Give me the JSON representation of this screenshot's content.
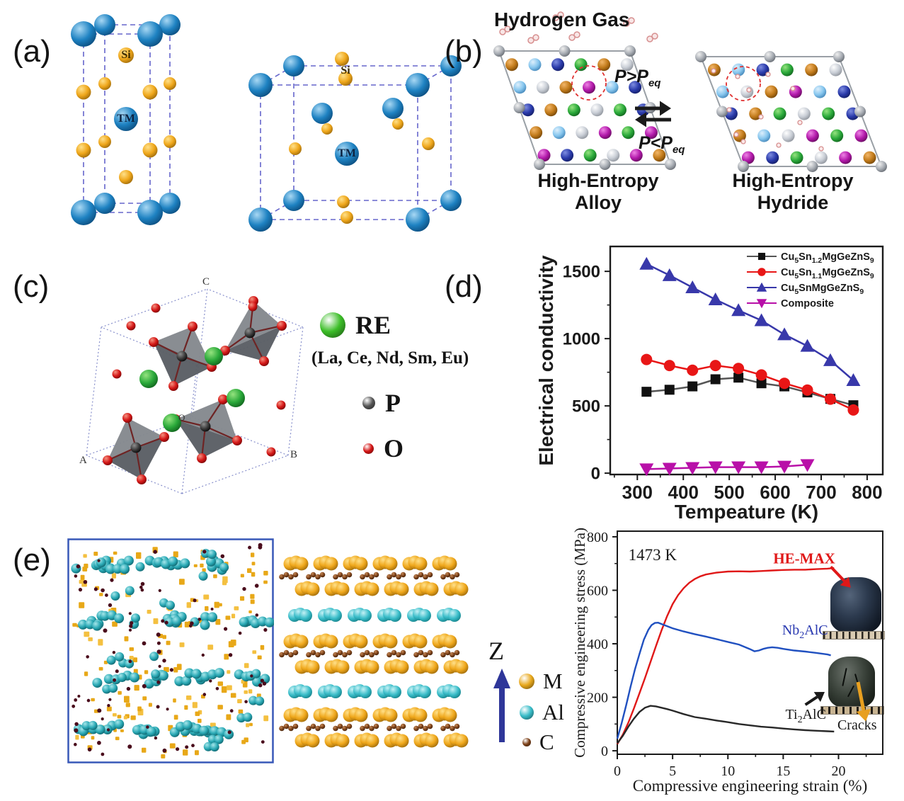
{
  "figure": {
    "background": "#ffffff"
  },
  "panels": {
    "a": {
      "label": "(a)",
      "si_label": "Si",
      "tm_label": "TM",
      "colors": {
        "tm_sphere": "#1e82c2",
        "si_sphere": "#efa71b",
        "cell_line": "#6666cc"
      }
    },
    "b": {
      "label": "(b)",
      "title": "Hydrogen Gas",
      "forward": {
        "main": "P>P",
        "sub": "eq"
      },
      "reverse": {
        "main": "P<P",
        "sub": "eq"
      },
      "left_caption": [
        "High-Entropy",
        "Alloy"
      ],
      "right_caption": [
        "High-Entropy",
        "Hydride"
      ],
      "colors": {
        "outline": "#9aa0a6",
        "highlight": "#e03030",
        "h2": "#d79090"
      }
    },
    "c": {
      "label": "(c)",
      "legend": {
        "re": "RE",
        "re_elements": "(La, Ce, Nd, Sm, Eu)",
        "p": "P",
        "o": "O"
      },
      "corner_labels": {
        "a": "A",
        "b": "B",
        "c": "C",
        "o": "O"
      },
      "colors": {
        "re": "#3cbe28",
        "p": "#262626",
        "o": "#d41414",
        "tetra": "#6e6e72",
        "cell_line": "#8890cc"
      }
    },
    "d": {
      "label": "(d)"
    },
    "e": {
      "label": "(e)",
      "axis_label": "Z",
      "legend": [
        {
          "label": "M",
          "color": "#e8a81c"
        },
        {
          "label": "Al",
          "color": "#38bcc8"
        },
        {
          "label": "C",
          "color": "#7c4018"
        }
      ],
      "map_colors": {
        "teal": "#28a8b4",
        "yellow": "#e8a818",
        "dot": "#4a0c1c",
        "border": "#3858b8"
      }
    }
  },
  "chart_data": [
    {
      "id": "conductivity",
      "type": "line",
      "title": "",
      "xlabel": "Tempeature (K)",
      "ylabel": "Electrical conductivity",
      "xlim": [
        241,
        834
      ],
      "ylim": [
        -10,
        1685
      ],
      "xticks": [
        300,
        400,
        500,
        600,
        700,
        800
      ],
      "yticks": [
        0,
        500,
        1000,
        1500
      ],
      "x_minor_step": 50,
      "y_minor_step": 250,
      "grid": false,
      "legend_position": "top-right",
      "series": [
        {
          "name": "Cu5Sn1.2MgGeZnS9",
          "segments": [
            {
              "t": "Cu"
            },
            {
              "t": "5",
              "sub": true
            },
            {
              "t": "Sn"
            },
            {
              "t": "1.2",
              "sub": true
            },
            {
              "t": "MgGeZnS"
            },
            {
              "t": "9",
              "sub": true
            }
          ],
          "color": "#111111",
          "line_color": "#555555",
          "marker": "square",
          "x": [
            320,
            370,
            420,
            470,
            520,
            570,
            620,
            670,
            720,
            770
          ],
          "y": [
            605,
            620,
            645,
            698,
            710,
            668,
            645,
            600,
            552,
            505
          ]
        },
        {
          "name": "Cu5Sn1.1MgGeZnS9",
          "segments": [
            {
              "t": "Cu"
            },
            {
              "t": "5",
              "sub": true
            },
            {
              "t": "Sn"
            },
            {
              "t": "1.1",
              "sub": true
            },
            {
              "t": "MgGeZnS"
            },
            {
              "t": "9",
              "sub": true
            }
          ],
          "color": "#e81616",
          "marker": "circle",
          "x": [
            320,
            370,
            420,
            470,
            520,
            570,
            620,
            670,
            720,
            770
          ],
          "y": [
            845,
            800,
            765,
            800,
            778,
            730,
            668,
            618,
            550,
            470
          ]
        },
        {
          "name": "Cu5SnMgGeZnS9",
          "segments": [
            {
              "t": "Cu"
            },
            {
              "t": "5",
              "sub": true
            },
            {
              "t": "SnMgGeZnS"
            },
            {
              "t": "9",
              "sub": true
            }
          ],
          "color": "#3838aa",
          "marker": "triangle-up",
          "x": [
            320,
            370,
            420,
            470,
            520,
            570,
            620,
            670,
            720,
            770
          ],
          "y": [
            1555,
            1470,
            1380,
            1290,
            1210,
            1135,
            1030,
            945,
            838,
            690
          ]
        },
        {
          "name": "Composite",
          "segments": [
            {
              "t": "Composite"
            }
          ],
          "color": "#b810a8",
          "line_color": "#b810a8",
          "marker": "triangle-down",
          "x": [
            320,
            370,
            420,
            470,
            520,
            570,
            620,
            670
          ],
          "y": [
            30,
            35,
            40,
            45,
            45,
            45,
            50,
            62
          ]
        }
      ]
    },
    {
      "id": "stress",
      "type": "line",
      "xlabel": "Compressive engineering strain (%)",
      "ylabel": "Compressive engineering stress (MPa)",
      "xlim": [
        0,
        24
      ],
      "ylim": [
        -13,
        821
      ],
      "xticks": [
        0,
        5,
        10,
        15,
        20
      ],
      "yticks": [
        0,
        200,
        400,
        600,
        800
      ],
      "x_minor_step": 2.5,
      "y_minor_step": 100,
      "grid": false,
      "series": [
        {
          "name": "HE-MAX",
          "color": "#e01818",
          "marker": "none",
          "x": [
            0,
            0.5,
            1,
            1.5,
            2,
            2.5,
            3,
            3.5,
            4,
            4.5,
            5,
            5.5,
            6,
            6.5,
            7,
            7.5,
            8,
            9,
            10,
            11,
            12,
            13,
            14,
            15,
            16,
            17,
            18,
            19,
            19.6
          ],
          "y": [
            25,
            60,
            105,
            158,
            215,
            272,
            332,
            392,
            450,
            503,
            548,
            582,
            608,
            628,
            642,
            652,
            659,
            666,
            670,
            671,
            670,
            672,
            674,
            676,
            677,
            677,
            679,
            681,
            683
          ]
        },
        {
          "name": "Nb2AlC",
          "segments": [
            {
              "t": "Nb"
            },
            {
              "t": "2",
              "sub": true
            },
            {
              "t": "AlC"
            }
          ],
          "color": "#2050c0",
          "marker": "none",
          "x": [
            0,
            0.4,
            0.8,
            1.2,
            1.6,
            2,
            2.4,
            2.8,
            3.1,
            3.4,
            3.7,
            4,
            4.5,
            5,
            5.5,
            6,
            7,
            8,
            9,
            10,
            11,
            12,
            12.4,
            12.8,
            13.2,
            13.6,
            14,
            14.5,
            15,
            16,
            17,
            18,
            19,
            19.3
          ],
          "y": [
            45,
            105,
            170,
            240,
            305,
            362,
            415,
            452,
            470,
            478,
            479,
            474,
            466,
            458,
            452,
            446,
            436,
            427,
            417,
            407,
            397,
            380,
            372,
            375,
            381,
            385,
            387,
            385,
            381,
            375,
            371,
            366,
            360,
            357
          ]
        },
        {
          "name": "Ti2AlC",
          "segments": [
            {
              "t": "Ti"
            },
            {
              "t": "2",
              "sub": true
            },
            {
              "t": "AlC"
            }
          ],
          "color": "#282828",
          "marker": "none",
          "x": [
            0,
            0.5,
            1,
            1.5,
            2,
            2.5,
            3,
            3.5,
            4,
            4.5,
            5,
            6,
            7,
            8,
            9,
            10,
            11,
            12,
            13,
            14,
            15,
            16,
            17,
            18,
            19,
            19.6
          ],
          "y": [
            28,
            56,
            90,
            120,
            145,
            161,
            168,
            166,
            161,
            156,
            150,
            137,
            126,
            120,
            113,
            107,
            100,
            95,
            90,
            87,
            83,
            80,
            77,
            75,
            73,
            72
          ]
        }
      ],
      "annotations": [
        {
          "kind": "text",
          "text": "1473 K",
          "x": 1.0,
          "y": 712,
          "color": "#1a1a1a",
          "size": 23,
          "font": "serif"
        },
        {
          "kind": "text",
          "text": "HE-MAX",
          "x": 14.1,
          "y": 700,
          "color": "#e01818",
          "size": 21,
          "bold": true,
          "font": "serif"
        },
        {
          "kind": "arrow",
          "x1": 19.3,
          "y1": 688,
          "x2": 21.1,
          "y2": 610,
          "color": "#e01818",
          "width": 4
        },
        {
          "kind": "text",
          "segments": [
            {
              "t": "Nb"
            },
            {
              "t": "2",
              "sub": true
            },
            {
              "t": "AlC"
            }
          ],
          "x": 14.9,
          "y": 435,
          "color": "#2838b0",
          "size": 20,
          "font": "serif"
        },
        {
          "kind": "text",
          "segments": [
            {
              "t": "Ti"
            },
            {
              "t": "2",
              "sub": true
            },
            {
              "t": "AlC"
            }
          ],
          "x": 15.2,
          "y": 120,
          "color": "#1a1a1a",
          "size": 20,
          "font": "serif"
        },
        {
          "kind": "arrow",
          "x1": 17.0,
          "y1": 172,
          "x2": 18.75,
          "y2": 220,
          "color": "#1a1a1a",
          "width": 4
        },
        {
          "kind": "text",
          "text": "Cracks",
          "x": 19.9,
          "y": 80,
          "color": "#1a1a1a",
          "size": 20,
          "font": "serif"
        },
        {
          "kind": "arrow",
          "x1": 21.76,
          "y1": 257,
          "x2": 22.46,
          "y2": 110,
          "color": "#e8a020",
          "width": 5
        }
      ]
    }
  ]
}
